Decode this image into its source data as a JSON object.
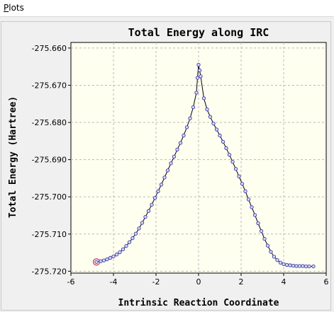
{
  "menu": {
    "plots_mnemonic": "P",
    "plots_rest": "lots"
  },
  "colors": {
    "plot_background": "#fffff0",
    "curve": "#000000",
    "marker": "#3a3aa8",
    "highlight_marker": "#cc3366",
    "grid": "#b8b8b8"
  },
  "chart_data": {
    "type": "line",
    "title": "Total Energy along IRC",
    "xlabel": "Intrinsic Reaction Coordinate",
    "ylabel": "Total Energy (Hartree)",
    "xlim": [
      -6,
      6
    ],
    "ylim": [
      -275.7205,
      -275.6585
    ],
    "xticks": [
      -6,
      -4,
      -2,
      0,
      2,
      4,
      6
    ],
    "yticks": [
      -275.66,
      -275.67,
      -275.68,
      -275.69,
      -275.7,
      -275.71,
      -275.72
    ],
    "ytick_labels": [
      "-275.660",
      "-275.670",
      "-275.680",
      "-275.690",
      "-275.700",
      "-275.710",
      "-275.720"
    ],
    "xtick_labels": [
      "-6",
      "-4",
      "-2",
      "0",
      "2",
      "4",
      "6"
    ],
    "grid": true,
    "highlight_point_index": 0,
    "series": [
      {
        "x": [
          -4.8,
          -4.6,
          -4.45,
          -4.3,
          -4.15,
          -4.0,
          -3.85,
          -3.7,
          -3.55,
          -3.4,
          -3.25,
          -3.1,
          -2.95,
          -2.8,
          -2.65,
          -2.5,
          -2.35,
          -2.2,
          -2.05,
          -1.9,
          -1.75,
          -1.6,
          -1.45,
          -1.3,
          -1.15,
          -1.0,
          -0.85,
          -0.7,
          -0.55,
          -0.4,
          -0.25,
          -0.1,
          -0.05,
          0.0,
          0.05,
          0.1,
          0.25,
          0.4,
          0.55,
          0.7,
          0.85,
          1.0,
          1.15,
          1.3,
          1.45,
          1.6,
          1.75,
          1.9,
          2.05,
          2.2,
          2.35,
          2.5,
          2.65,
          2.8,
          2.95,
          3.1,
          3.25,
          3.4,
          3.55,
          3.7,
          3.85,
          4.0,
          4.15,
          4.3,
          4.45,
          4.6,
          4.75,
          4.9,
          5.05,
          5.2,
          5.4
        ],
        "y": [
          -275.7175,
          -275.7173,
          -275.7171,
          -275.7168,
          -275.7164,
          -275.716,
          -275.7155,
          -275.7149,
          -275.7141,
          -275.7132,
          -275.7122,
          -275.7111,
          -275.7099,
          -275.7085,
          -275.707,
          -275.7054,
          -275.7038,
          -275.7021,
          -275.7003,
          -275.6985,
          -275.6967,
          -275.6948,
          -275.6929,
          -275.691,
          -275.6892,
          -275.6873,
          -275.6855,
          -275.6835,
          -275.6813,
          -275.6789,
          -275.6759,
          -275.672,
          -275.668,
          -275.6645,
          -275.666,
          -275.6676,
          -275.6735,
          -275.6765,
          -275.6785,
          -275.6803,
          -275.6819,
          -275.6835,
          -275.6852,
          -275.6869,
          -275.6887,
          -275.6906,
          -275.6925,
          -275.6945,
          -275.6965,
          -275.6985,
          -275.7007,
          -275.7028,
          -275.7049,
          -275.7071,
          -275.7092,
          -275.7113,
          -275.7131,
          -275.7148,
          -275.7161,
          -275.717,
          -275.7177,
          -275.7181,
          -275.7183,
          -275.7184,
          -275.7185,
          -275.7186,
          -275.7186,
          -275.7186,
          -275.7187,
          -275.7187,
          -275.7187
        ]
      }
    ]
  }
}
